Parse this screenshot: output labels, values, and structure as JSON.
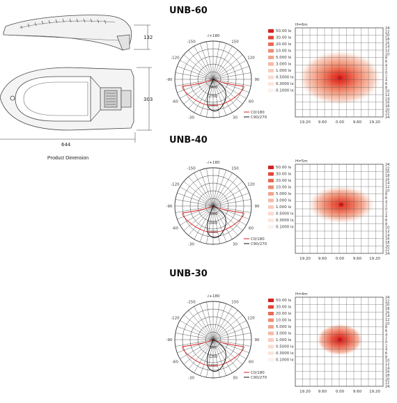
{
  "product": {
    "dimension_caption": "Product Dimension",
    "height_label": "132",
    "width_label": "303",
    "length_label": "644"
  },
  "lx_levels": [
    {
      "label": "50.00 lx",
      "color": "#d42020"
    },
    {
      "label": "30.00 lx",
      "color": "#e24535"
    },
    {
      "label": "20.00 lx",
      "color": "#ea6a55"
    },
    {
      "label": "10.00 lx",
      "color": "#ef8a72"
    },
    {
      "label": "5.000 lx",
      "color": "#f3a48e"
    },
    {
      "label": "3.000 lx",
      "color": "#f6b9a6"
    },
    {
      "label": "1.000 lx",
      "color": "#f8cbbb"
    },
    {
      "label": "0.5000 lx",
      "color": "#fad9cc"
    },
    {
      "label": "0.3000 lx",
      "color": "#fce5db"
    },
    {
      "label": "0.1000 lx",
      "color": "#fdf0ea"
    }
  ],
  "polar": {
    "angle_labels": [
      "-/+180",
      "150",
      "-150",
      "120",
      "-120",
      "90",
      "-90",
      "60",
      "-60",
      "30",
      "-30"
    ],
    "legend_c0": "C0/180",
    "legend_c90": "C90/270"
  },
  "iso_axis": {
    "x_labels": [
      "19.20",
      "9.60",
      "0.00",
      "9.60",
      "19.20"
    ],
    "y_labels": [
      "24",
      "22",
      "20",
      "18",
      "16",
      "14",
      "12",
      "10",
      "8",
      "6",
      "4",
      "2",
      "0",
      "2",
      "4",
      "6",
      "8",
      "10",
      "12",
      "14",
      "16",
      "18",
      "20",
      "22",
      "24"
    ]
  },
  "models": [
    {
      "name": "UNB-60",
      "mount_height": "H=6m",
      "radial_labels": [
        "2400",
        "2700",
        "3000"
      ]
    },
    {
      "name": "UNB-40",
      "mount_height": "H=5m",
      "radial_labels": [
        "1200",
        "1600",
        "2000"
      ]
    },
    {
      "name": "UNB-30",
      "mount_height": "H=4m",
      "radial_labels": [
        "800",
        "1200",
        "1600"
      ]
    }
  ]
}
